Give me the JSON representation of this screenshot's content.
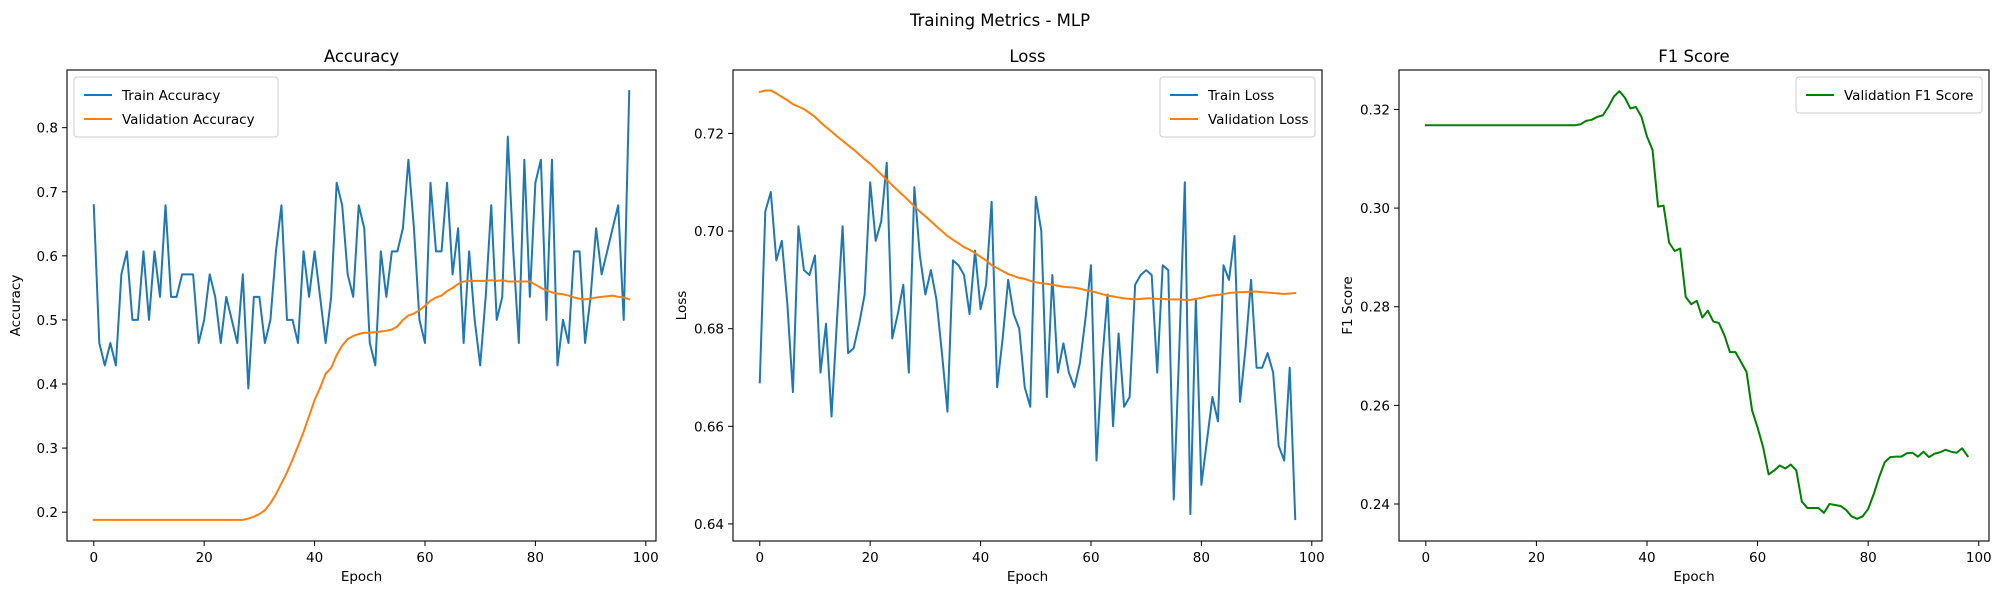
{
  "figure": {
    "suptitle": "Training Metrics - MLP"
  },
  "colors": {
    "train": "#1f77b4",
    "validation": "#ff7f0e",
    "f1": "#008000",
    "axes": "#000000",
    "legend_border": "#cccccc"
  },
  "chart_data": [
    {
      "type": "line",
      "title": "Accuracy",
      "xlabel": "Epoch",
      "ylabel": "Accuracy",
      "xlim": [
        -4.85,
        101.85
      ],
      "ylim": [
        0.155,
        0.89
      ],
      "xticks": [
        0,
        20,
        40,
        60,
        80,
        100
      ],
      "xtick_labels": [
        "0",
        "20",
        "40",
        "60",
        "80",
        "100"
      ],
      "yticks": [
        0.2,
        0.3,
        0.4,
        0.5,
        0.6,
        0.7,
        0.8
      ],
      "ytick_labels": [
        "0.2",
        "0.3",
        "0.4",
        "0.5",
        "0.6",
        "0.7",
        "0.8"
      ],
      "grid": false,
      "legend": "upper-left",
      "series": [
        {
          "name": "Train Accuracy",
          "color": "#1f77b4",
          "values": [
            0.679,
            0.464,
            0.429,
            0.464,
            0.429,
            0.571,
            0.607,
            0.5,
            0.5,
            0.607,
            0.5,
            0.607,
            0.536,
            0.679,
            0.536,
            0.536,
            0.571,
            0.571,
            0.571,
            0.464,
            0.5,
            0.571,
            0.536,
            0.464,
            0.536,
            0.5,
            0.464,
            0.571,
            0.393,
            0.536,
            0.536,
            0.464,
            0.5,
            0.607,
            0.679,
            0.5,
            0.5,
            0.464,
            0.607,
            0.536,
            0.607,
            0.536,
            0.464,
            0.536,
            0.714,
            0.679,
            0.571,
            0.536,
            0.679,
            0.643,
            0.464,
            0.429,
            0.607,
            0.536,
            0.607,
            0.607,
            0.643,
            0.75,
            0.643,
            0.5,
            0.464,
            0.714,
            0.607,
            0.607,
            0.714,
            0.571,
            0.643,
            0.464,
            0.607,
            0.5,
            0.429,
            0.536,
            0.679,
            0.5,
            0.536,
            0.786,
            0.607,
            0.464,
            0.75,
            0.536,
            0.714,
            0.75,
            0.5,
            0.75,
            0.429,
            0.5,
            0.464,
            0.607,
            0.607,
            0.464,
            0.536,
            0.643,
            0.571,
            0.607,
            0.643,
            0.679,
            0.5,
            0.857
          ]
        },
        {
          "name": "Validation Accuracy",
          "color": "#ff7f0e",
          "values": [
            0.188,
            0.188,
            0.188,
            0.188,
            0.188,
            0.188,
            0.188,
            0.188,
            0.188,
            0.188,
            0.188,
            0.188,
            0.188,
            0.188,
            0.188,
            0.188,
            0.188,
            0.188,
            0.188,
            0.188,
            0.188,
            0.188,
            0.188,
            0.188,
            0.188,
            0.188,
            0.188,
            0.188,
            0.19,
            0.193,
            0.197,
            0.203,
            0.214,
            0.228,
            0.245,
            0.262,
            0.282,
            0.303,
            0.325,
            0.35,
            0.375,
            0.394,
            0.416,
            0.425,
            0.445,
            0.46,
            0.47,
            0.475,
            0.478,
            0.48,
            0.48,
            0.481,
            0.482,
            0.483,
            0.485,
            0.49,
            0.5,
            0.507,
            0.51,
            0.515,
            0.522,
            0.53,
            0.535,
            0.538,
            0.545,
            0.55,
            0.556,
            0.56,
            0.561,
            0.561,
            0.561,
            0.561,
            0.562,
            0.561,
            0.562,
            0.56,
            0.56,
            0.56,
            0.56,
            0.56,
            0.555,
            0.55,
            0.546,
            0.543,
            0.541,
            0.54,
            0.538,
            0.535,
            0.533,
            0.532,
            0.533,
            0.535,
            0.536,
            0.537,
            0.538,
            0.536,
            0.535,
            0.532
          ]
        }
      ]
    },
    {
      "type": "line",
      "title": "Loss",
      "xlabel": "Epoch",
      "ylabel": "Loss",
      "xlim": [
        -4.85,
        101.85
      ],
      "ylim": [
        0.6365,
        0.733
      ],
      "xticks": [
        0,
        20,
        40,
        60,
        80,
        100
      ],
      "xtick_labels": [
        "0",
        "20",
        "40",
        "60",
        "80",
        "100"
      ],
      "yticks": [
        0.64,
        0.66,
        0.68,
        0.7,
        0.72
      ],
      "ytick_labels": [
        "0.64",
        "0.66",
        "0.68",
        "0.70",
        "0.72"
      ],
      "grid": false,
      "legend": "upper-right",
      "series": [
        {
          "name": "Train Loss",
          "color": "#1f77b4",
          "values": [
            0.669,
            0.704,
            0.708,
            0.694,
            0.698,
            0.685,
            0.667,
            0.701,
            0.692,
            0.691,
            0.695,
            0.671,
            0.681,
            0.662,
            0.682,
            0.701,
            0.675,
            0.676,
            0.681,
            0.687,
            0.71,
            0.698,
            0.702,
            0.714,
            0.678,
            0.683,
            0.689,
            0.671,
            0.709,
            0.695,
            0.687,
            0.692,
            0.686,
            0.675,
            0.663,
            0.694,
            0.693,
            0.691,
            0.683,
            0.696,
            0.684,
            0.689,
            0.706,
            0.668,
            0.678,
            0.69,
            0.683,
            0.68,
            0.668,
            0.664,
            0.707,
            0.7,
            0.666,
            0.691,
            0.671,
            0.677,
            0.671,
            0.668,
            0.673,
            0.682,
            0.693,
            0.653,
            0.673,
            0.687,
            0.66,
            0.679,
            0.664,
            0.666,
            0.689,
            0.691,
            0.692,
            0.691,
            0.671,
            0.693,
            0.692,
            0.645,
            0.676,
            0.71,
            0.642,
            0.686,
            0.648,
            0.657,
            0.666,
            0.661,
            0.693,
            0.69,
            0.699,
            0.665,
            0.676,
            0.69,
            0.672,
            0.672,
            0.675,
            0.671,
            0.656,
            0.653,
            0.672,
            0.641
          ]
        },
        {
          "name": "Validation Loss",
          "color": "#ff7f0e",
          "values": [
            0.7285,
            0.7288,
            0.7288,
            0.7282,
            0.7275,
            0.7268,
            0.726,
            0.7255,
            0.725,
            0.7242,
            0.7234,
            0.7223,
            0.7213,
            0.7204,
            0.7194,
            0.7185,
            0.7176,
            0.7167,
            0.7157,
            0.7147,
            0.7138,
            0.7127,
            0.7116,
            0.7105,
            0.7094,
            0.7083,
            0.7073,
            0.7062,
            0.7051,
            0.704,
            0.703,
            0.702,
            0.701,
            0.7,
            0.699,
            0.6982,
            0.6975,
            0.6967,
            0.6962,
            0.6955,
            0.6947,
            0.694,
            0.693,
            0.6924,
            0.6918,
            0.6912,
            0.6908,
            0.6904,
            0.6902,
            0.6898,
            0.6895,
            0.6893,
            0.6892,
            0.689,
            0.6888,
            0.6886,
            0.6885,
            0.6884,
            0.6882,
            0.6879,
            0.6877,
            0.6874,
            0.6871,
            0.6868,
            0.6866,
            0.6864,
            0.6862,
            0.6861,
            0.686,
            0.6861,
            0.6862,
            0.6862,
            0.6861,
            0.6861,
            0.686,
            0.686,
            0.686,
            0.6859,
            0.6859,
            0.6861,
            0.6863,
            0.6866,
            0.6868,
            0.6869,
            0.6871,
            0.6873,
            0.6874,
            0.6875,
            0.6875,
            0.6876,
            0.6876,
            0.6875,
            0.6874,
            0.6873,
            0.6872,
            0.6871,
            0.6872,
            0.6873
          ]
        }
      ]
    },
    {
      "type": "line",
      "title": "F1 Score",
      "xlabel": "Epoch",
      "ylabel": "F1 Score",
      "xlim": [
        -4.85,
        101.85
      ],
      "ylim": [
        0.2325,
        0.328
      ],
      "xticks": [
        0,
        20,
        40,
        60,
        80,
        100
      ],
      "xtick_labels": [
        "0",
        "20",
        "40",
        "60",
        "80",
        "100"
      ],
      "yticks": [
        0.24,
        0.26,
        0.28,
        0.3,
        0.32
      ],
      "ytick_labels": [
        "0.24",
        "0.26",
        "0.28",
        "0.30",
        "0.32"
      ],
      "grid": false,
      "legend": "upper-right",
      "series": [
        {
          "name": "Validation F1 Score",
          "color": "#008000",
          "values": [
            0.3168,
            0.3168,
            0.3168,
            0.3168,
            0.3168,
            0.3168,
            0.3168,
            0.3168,
            0.3168,
            0.3168,
            0.3168,
            0.3168,
            0.3168,
            0.3168,
            0.3168,
            0.3168,
            0.3168,
            0.3168,
            0.3168,
            0.3168,
            0.3168,
            0.3168,
            0.3168,
            0.3168,
            0.3168,
            0.3168,
            0.3168,
            0.3168,
            0.317,
            0.3177,
            0.3179,
            0.3185,
            0.3188,
            0.3205,
            0.3226,
            0.3237,
            0.3224,
            0.3202,
            0.3205,
            0.3185,
            0.3145,
            0.3118,
            0.3003,
            0.3005,
            0.293,
            0.2913,
            0.2918,
            0.282,
            0.2805,
            0.2812,
            0.2778,
            0.2792,
            0.277,
            0.2767,
            0.2742,
            0.2708,
            0.2708,
            0.2688,
            0.2668,
            0.259,
            0.2555,
            0.2515,
            0.246,
            0.2468,
            0.2478,
            0.2472,
            0.248,
            0.2468,
            0.2405,
            0.2392,
            0.2392,
            0.2392,
            0.2382,
            0.24,
            0.2398,
            0.2396,
            0.2388,
            0.2375,
            0.237,
            0.2375,
            0.239,
            0.242,
            0.2455,
            0.2485,
            0.2495,
            0.2496,
            0.2496,
            0.2503,
            0.2504,
            0.2496,
            0.2506,
            0.2495,
            0.2502,
            0.2505,
            0.251,
            0.2506,
            0.2504,
            0.2513,
            0.2497
          ]
        }
      ]
    }
  ]
}
